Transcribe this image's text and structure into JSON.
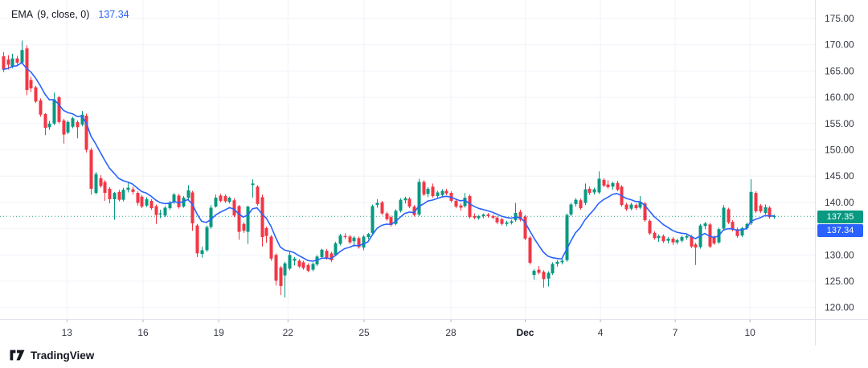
{
  "legend": {
    "title": "EMA",
    "params": "(9, close, 0)",
    "value": "137.34"
  },
  "price_axis": {
    "last_price_label": "137.35",
    "ema_price_label": "137.34"
  },
  "footer": {
    "brand": "TradingView"
  },
  "colors": {
    "up": "#089981",
    "down": "#f23645",
    "ema_line": "#2962ff",
    "last_price_line": "#089981",
    "last_badge_bg": "#089981",
    "ema_badge_bg": "#2962ff",
    "grid": "#f0f3fa",
    "axis_border": "#e0e3eb",
    "tick_mark": "#b2b5be",
    "axis_text": "#363a45",
    "axis_text_bold": "#131722",
    "legend_text": "#131722"
  },
  "chart_data": {
    "type": "candlestick",
    "title": "EMA (9, close, 0)",
    "indicator": {
      "name": "EMA",
      "period": 9,
      "source": "close",
      "offset": 0,
      "value": 137.34
    },
    "last_price": 137.35,
    "grid": true,
    "legend_position": "top-left",
    "y_axis": {
      "side": "right",
      "range_visible": [
        116,
        178.5
      ],
      "grid_values": [
        175,
        170,
        165,
        160,
        155,
        150,
        145,
        140,
        135,
        130,
        125,
        120
      ],
      "labels": [
        {
          "value": 175,
          "text": "175.00"
        },
        {
          "value": 170,
          "text": "170.00"
        },
        {
          "value": 165,
          "text": "165.00"
        },
        {
          "value": 160,
          "text": "160.00"
        },
        {
          "value": 155,
          "text": "155.00"
        },
        {
          "value": 150,
          "text": "150.00"
        },
        {
          "value": 145,
          "text": "145.00"
        },
        {
          "value": 140,
          "text": "140.00"
        },
        {
          "value": 130,
          "text": "130.00"
        },
        {
          "value": 125,
          "text": "125.00"
        },
        {
          "value": 120,
          "text": "120.00"
        }
      ]
    },
    "x_axis": {
      "ticks": [
        {
          "label": "13",
          "i": 13.8,
          "bold": false
        },
        {
          "label": "16",
          "i": 30.3,
          "bold": false
        },
        {
          "label": "19",
          "i": 46.7,
          "bold": false
        },
        {
          "label": "22",
          "i": 61.7,
          "bold": false
        },
        {
          "label": "25",
          "i": 78.2,
          "bold": false
        },
        {
          "label": "28",
          "i": 97.0,
          "bold": false
        },
        {
          "label": "Dec",
          "i": 113.1,
          "bold": true
        },
        {
          "label": "4",
          "i": 129.4,
          "bold": false
        },
        {
          "label": "7",
          "i": 145.6,
          "bold": false
        },
        {
          "label": "10",
          "i": 161.8,
          "bold": false
        }
      ]
    },
    "candles": [
      [
        167.8,
        168.6,
        164.8,
        165.3
      ],
      [
        167.2,
        168.0,
        165.3,
        166.2
      ],
      [
        165.8,
        168.3,
        165.5,
        167.4
      ],
      [
        167.4,
        167.9,
        166.2,
        166.6
      ],
      [
        166.6,
        170.8,
        166.3,
        169.0
      ],
      [
        169.3,
        169.9,
        160.4,
        161.4
      ],
      [
        163.3,
        163.9,
        161.0,
        161.7
      ],
      [
        161.9,
        162.2,
        158.9,
        159.2
      ],
      [
        159.4,
        159.8,
        156.3,
        156.7
      ],
      [
        156.8,
        157.0,
        152.8,
        154.2
      ],
      [
        154.3,
        155.5,
        153.8,
        155.0
      ],
      [
        155.0,
        160.9,
        154.7,
        159.6
      ],
      [
        160.0,
        160.3,
        155.0,
        155.3
      ],
      [
        155.6,
        155.9,
        151.2,
        152.9
      ],
      [
        153.3,
        155.6,
        153.0,
        155.3
      ],
      [
        154.4,
        156.3,
        154.1,
        156.0
      ],
      [
        155.3,
        155.6,
        152.2,
        154.3
      ],
      [
        154.8,
        157.4,
        154.5,
        156.7
      ],
      [
        156.5,
        156.9,
        149.5,
        150.0
      ],
      [
        150.0,
        150.4,
        141.5,
        142.6
      ],
      [
        141.8,
        145.8,
        141.5,
        145.4
      ],
      [
        144.6,
        145.2,
        142.8,
        143.1
      ],
      [
        143.9,
        144.2,
        140.3,
        141.8
      ],
      [
        142.6,
        142.9,
        139.8,
        140.6
      ],
      [
        140.6,
        142.0,
        136.7,
        141.8
      ],
      [
        142.0,
        142.4,
        140.2,
        140.5
      ],
      [
        140.5,
        142.8,
        140.2,
        142.4
      ],
      [
        142.4,
        143.9,
        141.9,
        142.8
      ],
      [
        142.5,
        143.0,
        141.5,
        142.0
      ],
      [
        141.8,
        142.1,
        139.4,
        139.9
      ],
      [
        141.1,
        141.4,
        138.9,
        139.2
      ],
      [
        139.4,
        141.0,
        139.1,
        140.6
      ],
      [
        140.3,
        140.6,
        138.6,
        138.9
      ],
      [
        139.3,
        139.6,
        135.9,
        137.6
      ],
      [
        137.7,
        138.6,
        137.0,
        137.9
      ],
      [
        137.5,
        139.3,
        137.2,
        139.0
      ],
      [
        138.9,
        140.3,
        138.6,
        140.0
      ],
      [
        140.0,
        141.8,
        139.7,
        141.5
      ],
      [
        141.3,
        141.6,
        138.8,
        139.1
      ],
      [
        139.2,
        141.2,
        139.0,
        140.9
      ],
      [
        140.9,
        143.3,
        140.6,
        142.3
      ],
      [
        141.9,
        142.2,
        134.6,
        136.0
      ],
      [
        135.6,
        135.9,
        129.6,
        130.3
      ],
      [
        130.2,
        131.6,
        129.5,
        130.9
      ],
      [
        130.9,
        135.6,
        130.6,
        135.3
      ],
      [
        135.3,
        139.5,
        135.0,
        139.0
      ],
      [
        139.2,
        141.5,
        139.0,
        140.9
      ],
      [
        141.3,
        141.6,
        140.0,
        140.3
      ],
      [
        141.2,
        141.5,
        139.9,
        140.2
      ],
      [
        140.1,
        141.1,
        139.8,
        140.9
      ],
      [
        140.4,
        140.8,
        137.2,
        137.5
      ],
      [
        139.3,
        139.5,
        132.9,
        134.4
      ],
      [
        135.9,
        136.2,
        134.2,
        134.6
      ],
      [
        134.4,
        139.4,
        132.1,
        139.2
      ],
      [
        143.3,
        144.4,
        140.9,
        143.6
      ],
      [
        143.0,
        143.3,
        139.4,
        139.7
      ],
      [
        141.0,
        141.5,
        131.6,
        133.4
      ],
      [
        135.1,
        135.4,
        132.3,
        133.6
      ],
      [
        133.5,
        133.8,
        128.9,
        129.3
      ],
      [
        130.0,
        130.3,
        124.2,
        125.1
      ],
      [
        127.6,
        127.9,
        122.4,
        124.1
      ],
      [
        126.1,
        128.7,
        121.9,
        128.4
      ],
      [
        127.4,
        130.7,
        127.1,
        130.0
      ],
      [
        128.9,
        129.6,
        128.0,
        129.3
      ],
      [
        128.9,
        129.2,
        127.5,
        127.8
      ],
      [
        128.6,
        128.9,
        127.2,
        127.5
      ],
      [
        128.1,
        128.4,
        126.7,
        127.0
      ],
      [
        127.2,
        128.6,
        126.9,
        128.3
      ],
      [
        128.2,
        130.0,
        127.9,
        129.7
      ],
      [
        129.6,
        131.2,
        129.3,
        131.0
      ],
      [
        130.8,
        131.1,
        129.1,
        129.4
      ],
      [
        130.3,
        130.6,
        128.7,
        129.0
      ],
      [
        130.0,
        132.5,
        129.8,
        132.2
      ],
      [
        132.1,
        134.0,
        131.8,
        133.7
      ],
      [
        133.6,
        134.1,
        133.0,
        133.4
      ],
      [
        133.5,
        133.8,
        132.1,
        132.4
      ],
      [
        132.6,
        133.6,
        131.6,
        133.3
      ],
      [
        133.2,
        133.5,
        131.2,
        131.5
      ],
      [
        131.4,
        133.8,
        130.9,
        133.5
      ],
      [
        133.4,
        134.2,
        133.0,
        134.0
      ],
      [
        134.2,
        139.6,
        133.9,
        139.3
      ],
      [
        139.5,
        140.6,
        139.0,
        139.9
      ],
      [
        140.0,
        140.3,
        137.6,
        137.9
      ],
      [
        137.9,
        138.2,
        136.5,
        136.8
      ],
      [
        137.2,
        137.5,
        135.4,
        135.7
      ],
      [
        135.9,
        138.7,
        135.6,
        138.4
      ],
      [
        138.4,
        140.8,
        138.1,
        140.5
      ],
      [
        140.4,
        141.1,
        139.8,
        140.8
      ],
      [
        140.7,
        141.0,
        138.9,
        139.2
      ],
      [
        139.2,
        139.5,
        137.3,
        137.6
      ],
      [
        137.7,
        144.5,
        137.4,
        143.9
      ],
      [
        143.9,
        144.2,
        141.2,
        141.5
      ],
      [
        141.6,
        142.9,
        141.0,
        142.6
      ],
      [
        143.0,
        143.6,
        140.9,
        141.2
      ],
      [
        141.2,
        142.2,
        140.8,
        141.9
      ],
      [
        141.4,
        142.5,
        141.0,
        142.2
      ],
      [
        142.2,
        142.6,
        141.4,
        141.7
      ],
      [
        141.8,
        142.1,
        140.0,
        140.3
      ],
      [
        140.3,
        140.6,
        138.9,
        139.2
      ],
      [
        139.4,
        139.8,
        138.4,
        139.0
      ],
      [
        139.3,
        141.8,
        139.0,
        140.9
      ],
      [
        141.2,
        141.5,
        136.9,
        137.2
      ],
      [
        137.4,
        137.9,
        136.8,
        137.1
      ],
      [
        137.0,
        137.6,
        136.7,
        137.4
      ],
      [
        137.4,
        137.9,
        137.0,
        137.7
      ],
      [
        137.7,
        138.0,
        137.1,
        137.4
      ],
      [
        137.4,
        137.7,
        136.8,
        137.1
      ],
      [
        137.1,
        137.4,
        135.9,
        136.2
      ],
      [
        136.8,
        137.1,
        135.6,
        135.9
      ],
      [
        135.9,
        136.5,
        135.5,
        136.2
      ],
      [
        136.1,
        136.7,
        135.8,
        136.4
      ],
      [
        136.6,
        139.9,
        136.3,
        138.0
      ],
      [
        138.2,
        138.6,
        136.4,
        136.7
      ],
      [
        137.3,
        137.6,
        132.8,
        133.1
      ],
      [
        133.3,
        133.6,
        128.2,
        128.5
      ],
      [
        126.2,
        127.3,
        125.3,
        127.0
      ],
      [
        127.2,
        127.9,
        126.3,
        126.6
      ],
      [
        126.8,
        127.1,
        123.8,
        125.4
      ],
      [
        125.5,
        126.9,
        124.0,
        126.6
      ],
      [
        126.5,
        128.6,
        126.2,
        128.3
      ],
      [
        128.3,
        129.0,
        127.8,
        128.7
      ],
      [
        128.6,
        129.2,
        128.2,
        128.9
      ],
      [
        129.0,
        137.9,
        128.7,
        137.6
      ],
      [
        137.7,
        139.9,
        137.4,
        139.6
      ],
      [
        139.7,
        140.8,
        139.2,
        140.5
      ],
      [
        140.4,
        140.7,
        138.6,
        138.9
      ],
      [
        139.9,
        143.6,
        139.5,
        142.5
      ],
      [
        142.6,
        143.0,
        141.4,
        141.8
      ],
      [
        141.9,
        142.8,
        141.5,
        142.5
      ],
      [
        141.9,
        145.9,
        141.6,
        144.5
      ],
      [
        144.3,
        144.6,
        142.9,
        143.2
      ],
      [
        143.4,
        144.2,
        142.6,
        142.9
      ],
      [
        143.0,
        143.9,
        142.4,
        143.7
      ],
      [
        143.7,
        144.1,
        142.1,
        142.4
      ],
      [
        143.0,
        143.3,
        139.2,
        139.5
      ],
      [
        139.6,
        139.9,
        138.4,
        138.7
      ],
      [
        138.8,
        139.9,
        138.5,
        139.6
      ],
      [
        139.5,
        139.8,
        138.6,
        138.9
      ],
      [
        139.0,
        141.2,
        138.7,
        140.0
      ],
      [
        139.8,
        140.1,
        136.3,
        136.6
      ],
      [
        136.5,
        136.8,
        133.8,
        134.1
      ],
      [
        134.2,
        134.5,
        132.9,
        133.2
      ],
      [
        133.2,
        133.9,
        132.5,
        133.6
      ],
      [
        133.6,
        133.9,
        132.3,
        132.6
      ],
      [
        132.7,
        133.4,
        132.2,
        133.1
      ],
      [
        133.1,
        133.4,
        131.9,
        132.4
      ],
      [
        132.4,
        133.1,
        132.0,
        132.8
      ],
      [
        132.7,
        133.7,
        132.4,
        133.4
      ],
      [
        133.3,
        133.9,
        132.9,
        133.6
      ],
      [
        133.5,
        133.8,
        131.3,
        131.6
      ],
      [
        132.0,
        132.3,
        128.1,
        131.4
      ],
      [
        131.5,
        135.9,
        131.2,
        135.6
      ],
      [
        135.5,
        136.3,
        134.9,
        136.0
      ],
      [
        135.8,
        136.1,
        131.3,
        131.6
      ],
      [
        133.4,
        133.7,
        131.9,
        132.2
      ],
      [
        132.4,
        135.2,
        132.1,
        134.9
      ],
      [
        135.0,
        139.5,
        134.7,
        139.0
      ],
      [
        138.7,
        139.0,
        135.9,
        136.2
      ],
      [
        136.3,
        136.6,
        134.5,
        134.8
      ],
      [
        134.9,
        135.2,
        133.3,
        133.6
      ],
      [
        133.7,
        135.4,
        133.4,
        135.1
      ],
      [
        135.1,
        136.2,
        134.8,
        135.9
      ],
      [
        136.0,
        144.4,
        135.7,
        142.0
      ],
      [
        141.8,
        142.1,
        138.0,
        138.3
      ],
      [
        139.4,
        139.7,
        138.0,
        138.3
      ],
      [
        138.0,
        139.6,
        137.7,
        139.1
      ],
      [
        139.0,
        139.3,
        136.9,
        137.2
      ],
      [
        137.2,
        137.7,
        136.9,
        137.35
      ]
    ]
  }
}
